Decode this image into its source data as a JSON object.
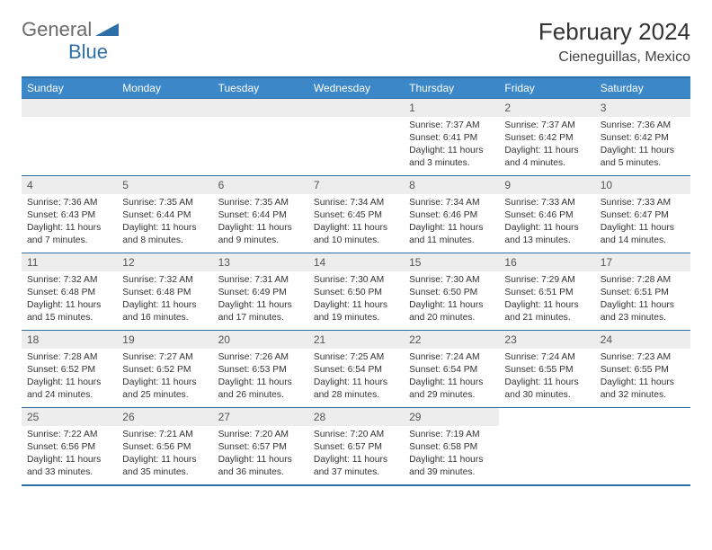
{
  "logo": {
    "general": "General",
    "blue": "Blue"
  },
  "title": "February 2024",
  "location": "Cieneguillas, Mexico",
  "colors": {
    "header_bg": "#3b87c8",
    "border": "#2f6fa8",
    "daynum_bg": "#ededed",
    "text": "#333333"
  },
  "weekdays": [
    "Sunday",
    "Monday",
    "Tuesday",
    "Wednesday",
    "Thursday",
    "Friday",
    "Saturday"
  ],
  "weeks": [
    [
      {
        "n": "",
        "t": ""
      },
      {
        "n": "",
        "t": ""
      },
      {
        "n": "",
        "t": ""
      },
      {
        "n": "",
        "t": ""
      },
      {
        "n": "1",
        "t": "Sunrise: 7:37 AM\nSunset: 6:41 PM\nDaylight: 11 hours and 3 minutes."
      },
      {
        "n": "2",
        "t": "Sunrise: 7:37 AM\nSunset: 6:42 PM\nDaylight: 11 hours and 4 minutes."
      },
      {
        "n": "3",
        "t": "Sunrise: 7:36 AM\nSunset: 6:42 PM\nDaylight: 11 hours and 5 minutes."
      }
    ],
    [
      {
        "n": "4",
        "t": "Sunrise: 7:36 AM\nSunset: 6:43 PM\nDaylight: 11 hours and 7 minutes."
      },
      {
        "n": "5",
        "t": "Sunrise: 7:35 AM\nSunset: 6:44 PM\nDaylight: 11 hours and 8 minutes."
      },
      {
        "n": "6",
        "t": "Sunrise: 7:35 AM\nSunset: 6:44 PM\nDaylight: 11 hours and 9 minutes."
      },
      {
        "n": "7",
        "t": "Sunrise: 7:34 AM\nSunset: 6:45 PM\nDaylight: 11 hours and 10 minutes."
      },
      {
        "n": "8",
        "t": "Sunrise: 7:34 AM\nSunset: 6:46 PM\nDaylight: 11 hours and 11 minutes."
      },
      {
        "n": "9",
        "t": "Sunrise: 7:33 AM\nSunset: 6:46 PM\nDaylight: 11 hours and 13 minutes."
      },
      {
        "n": "10",
        "t": "Sunrise: 7:33 AM\nSunset: 6:47 PM\nDaylight: 11 hours and 14 minutes."
      }
    ],
    [
      {
        "n": "11",
        "t": "Sunrise: 7:32 AM\nSunset: 6:48 PM\nDaylight: 11 hours and 15 minutes."
      },
      {
        "n": "12",
        "t": "Sunrise: 7:32 AM\nSunset: 6:48 PM\nDaylight: 11 hours and 16 minutes."
      },
      {
        "n": "13",
        "t": "Sunrise: 7:31 AM\nSunset: 6:49 PM\nDaylight: 11 hours and 17 minutes."
      },
      {
        "n": "14",
        "t": "Sunrise: 7:30 AM\nSunset: 6:50 PM\nDaylight: 11 hours and 19 minutes."
      },
      {
        "n": "15",
        "t": "Sunrise: 7:30 AM\nSunset: 6:50 PM\nDaylight: 11 hours and 20 minutes."
      },
      {
        "n": "16",
        "t": "Sunrise: 7:29 AM\nSunset: 6:51 PM\nDaylight: 11 hours and 21 minutes."
      },
      {
        "n": "17",
        "t": "Sunrise: 7:28 AM\nSunset: 6:51 PM\nDaylight: 11 hours and 23 minutes."
      }
    ],
    [
      {
        "n": "18",
        "t": "Sunrise: 7:28 AM\nSunset: 6:52 PM\nDaylight: 11 hours and 24 minutes."
      },
      {
        "n": "19",
        "t": "Sunrise: 7:27 AM\nSunset: 6:52 PM\nDaylight: 11 hours and 25 minutes."
      },
      {
        "n": "20",
        "t": "Sunrise: 7:26 AM\nSunset: 6:53 PM\nDaylight: 11 hours and 26 minutes."
      },
      {
        "n": "21",
        "t": "Sunrise: 7:25 AM\nSunset: 6:54 PM\nDaylight: 11 hours and 28 minutes."
      },
      {
        "n": "22",
        "t": "Sunrise: 7:24 AM\nSunset: 6:54 PM\nDaylight: 11 hours and 29 minutes."
      },
      {
        "n": "23",
        "t": "Sunrise: 7:24 AM\nSunset: 6:55 PM\nDaylight: 11 hours and 30 minutes."
      },
      {
        "n": "24",
        "t": "Sunrise: 7:23 AM\nSunset: 6:55 PM\nDaylight: 11 hours and 32 minutes."
      }
    ],
    [
      {
        "n": "25",
        "t": "Sunrise: 7:22 AM\nSunset: 6:56 PM\nDaylight: 11 hours and 33 minutes."
      },
      {
        "n": "26",
        "t": "Sunrise: 7:21 AM\nSunset: 6:56 PM\nDaylight: 11 hours and 35 minutes."
      },
      {
        "n": "27",
        "t": "Sunrise: 7:20 AM\nSunset: 6:57 PM\nDaylight: 11 hours and 36 minutes."
      },
      {
        "n": "28",
        "t": "Sunrise: 7:20 AM\nSunset: 6:57 PM\nDaylight: 11 hours and 37 minutes."
      },
      {
        "n": "29",
        "t": "Sunrise: 7:19 AM\nSunset: 6:58 PM\nDaylight: 11 hours and 39 minutes."
      },
      {
        "n": "",
        "t": ""
      },
      {
        "n": "",
        "t": ""
      }
    ]
  ]
}
